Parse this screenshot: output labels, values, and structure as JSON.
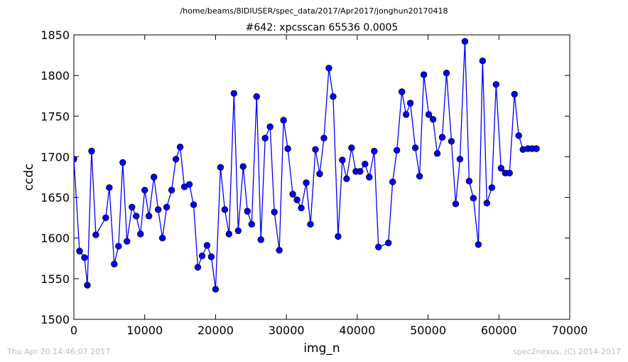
{
  "suptitle": "/home/beams/8IDIUSER/spec_data/2017/Apr2017/jonghun20170418",
  "footer": {
    "left": "Thu Apr 20 14:46:07 2017",
    "right": "spec2nexus, (C) 2014-2017"
  },
  "chart_data": {
    "type": "line",
    "title": "#642: xpcsscan 65536 0.0005",
    "xlabel": "img_n",
    "ylabel": "ccdc",
    "xlim": [
      0,
      70000
    ],
    "ylim": [
      1500,
      1850
    ],
    "xticks": [
      0,
      10000,
      20000,
      30000,
      40000,
      50000,
      60000,
      70000
    ],
    "xtick_labels": [
      "0",
      "10000",
      "20000",
      "30000",
      "40000",
      "50000",
      "60000",
      "70000"
    ],
    "yticks": [
      1500,
      1550,
      1600,
      1650,
      1700,
      1750,
      1800,
      1850
    ],
    "ytick_labels": [
      "1500",
      "1550",
      "1600",
      "1650",
      "1700",
      "1750",
      "1800",
      "1850"
    ],
    "grid": false,
    "series_color": "#0000ff",
    "series": [
      {
        "x": [
          0,
          800,
          1500,
          1900,
          2500,
          3100,
          4500,
          5000,
          5700,
          6300,
          6900,
          7500,
          8200,
          8800,
          9400,
          10000,
          10600,
          11300,
          11900,
          12500,
          13100,
          13800,
          14400,
          15000,
          15600,
          16300,
          16900,
          17500,
          18100,
          18800,
          19400,
          20000,
          20700,
          21300,
          21900,
          22600,
          23200,
          23900,
          24500,
          25100,
          25800,
          26400,
          27000,
          27700,
          28300,
          29000,
          29600,
          30200,
          30900,
          31500,
          32100,
          32800,
          33400,
          34100,
          34700,
          35300,
          36000,
          36600,
          37300,
          37900,
          38500,
          39200,
          39800,
          40400,
          41100,
          41700,
          42400,
          43000,
          44400,
          45000,
          45600,
          46300,
          46900,
          47500,
          48200,
          48800,
          49400,
          50100,
          50700,
          51300,
          52000,
          52600,
          53300,
          53900,
          54500,
          55200,
          55800,
          56400,
          57100,
          57700,
          58300,
          59000,
          59600,
          60300,
          60900,
          61500,
          62200,
          62800,
          63400,
          64100,
          64700,
          65300
        ],
        "y": [
          1697,
          1584,
          1576,
          1542,
          1707,
          1604,
          1625,
          1662,
          1568,
          1590,
          1693,
          1596,
          1638,
          1627,
          1605,
          1659,
          1627,
          1675,
          1635,
          1600,
          1638,
          1659,
          1697,
          1712,
          1663,
          1666,
          1641,
          1564,
          1578,
          1591,
          1577,
          1537,
          1687,
          1635,
          1605,
          1778,
          1609,
          1688,
          1633,
          1617,
          1774,
          1598,
          1723,
          1737,
          1632,
          1585,
          1745,
          1710,
          1654,
          1647,
          1637,
          1668,
          1617,
          1709,
          1679,
          1723,
          1809,
          1774,
          1602,
          1696,
          1673,
          1711,
          1682,
          1682,
          1691,
          1675,
          1707,
          1589,
          1594,
          1669,
          1708,
          1780,
          1752,
          1766,
          1711,
          1676,
          1801,
          1752,
          1746,
          1704,
          1724,
          1803,
          1719,
          1642,
          1697,
          1842,
          1670,
          1649,
          1592,
          1818,
          1643,
          1662,
          1789,
          1686,
          1680,
          1680,
          1777,
          1726,
          1709,
          1710,
          1710,
          1710
        ]
      }
    ]
  }
}
